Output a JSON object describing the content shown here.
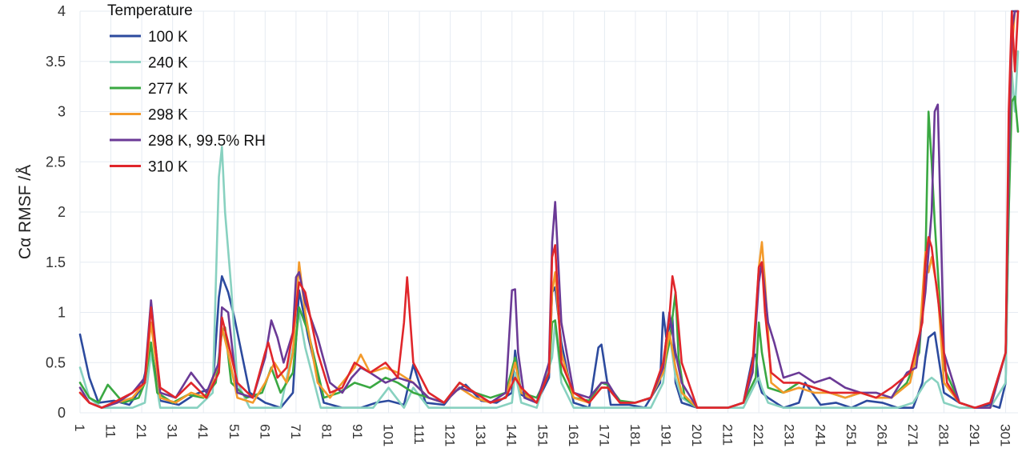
{
  "chart_data": {
    "type": "line",
    "title": "",
    "xlabel": "",
    "ylabel": "Cα RMSF /Å",
    "xlim": [
      1,
      305
    ],
    "ylim": [
      0,
      4
    ],
    "grid": true,
    "legend": {
      "title": "Temperature",
      "placement": "top-left"
    },
    "y_ticks": [
      "0",
      "0.5",
      "1",
      "1.5",
      "2",
      "2.5",
      "3",
      "3.5",
      "4"
    ],
    "x_ticks": [
      "1",
      "11",
      "21",
      "31",
      "41",
      "51",
      "61",
      "71",
      "81",
      "91",
      "101",
      "111",
      "121",
      "131",
      "141",
      "151",
      "161",
      "171",
      "181",
      "191",
      "201",
      "211",
      "221",
      "231",
      "241",
      "251",
      "261",
      "271",
      "281",
      "291",
      "301"
    ],
    "series": [
      {
        "name": "100 K",
        "color": "#2c4a9e",
        "x": [
          1,
          4,
          7,
          12,
          17,
          21,
          24,
          27,
          33,
          38,
          44,
          46,
          47,
          49,
          51,
          56,
          61,
          66,
          70,
          72,
          75,
          80,
          86,
          92,
          97,
          101,
          106,
          109,
          113,
          119,
          122,
          126,
          131,
          136,
          141,
          142,
          144,
          149,
          153,
          154,
          155,
          157,
          161,
          166,
          169,
          170,
          173,
          179,
          184,
          189,
          190,
          191,
          193,
          194,
          196,
          201,
          206,
          211,
          216,
          219,
          220,
          221,
          222,
          224,
          229,
          234,
          236,
          241,
          246,
          251,
          256,
          261,
          266,
          271,
          274,
          275,
          276,
          278,
          281,
          286,
          291,
          296,
          299,
          301,
          303,
          305
        ],
        "y": [
          0.78,
          0.35,
          0.1,
          0.12,
          0.08,
          0.25,
          0.65,
          0.12,
          0.08,
          0.18,
          0.25,
          1.15,
          1.36,
          1.2,
          0.95,
          0.2,
          0.1,
          0.05,
          0.2,
          1.22,
          0.75,
          0.1,
          0.05,
          0.05,
          0.1,
          0.12,
          0.08,
          0.48,
          0.1,
          0.08,
          0.2,
          0.28,
          0.12,
          0.1,
          0.2,
          0.62,
          0.18,
          0.1,
          0.35,
          1.2,
          1.25,
          0.7,
          0.1,
          0.05,
          0.65,
          0.68,
          0.08,
          0.08,
          0.05,
          0.3,
          1.0,
          0.75,
          0.95,
          0.3,
          0.1,
          0.05,
          0.05,
          0.05,
          0.1,
          0.55,
          0.58,
          0.3,
          0.2,
          0.15,
          0.05,
          0.1,
          0.3,
          0.08,
          0.1,
          0.05,
          0.12,
          0.1,
          0.05,
          0.05,
          0.3,
          0.55,
          0.75,
          0.8,
          0.2,
          0.1,
          0.05,
          0.08,
          0.05,
          0.3,
          4.0,
          4.0
        ]
      },
      {
        "name": "240 K",
        "color": "#88d1c0",
        "x": [
          1,
          4,
          8,
          13,
          18,
          22,
          24,
          27,
          33,
          39,
          44,
          46,
          47,
          48,
          50,
          52,
          56,
          61,
          66,
          71,
          72,
          74,
          79,
          85,
          91,
          96,
          101,
          106,
          109,
          114,
          121,
          126,
          131,
          136,
          141,
          142,
          144,
          149,
          154,
          155,
          157,
          161,
          166,
          171,
          176,
          181,
          186,
          190,
          192,
          194,
          196,
          201,
          206,
          211,
          216,
          220,
          221,
          222,
          224,
          229,
          236,
          241,
          246,
          251,
          256,
          261,
          266,
          271,
          275,
          277,
          279,
          281,
          286,
          291,
          296,
          301,
          302,
          303,
          304,
          305
        ],
        "y": [
          0.45,
          0.15,
          0.05,
          0.05,
          0.05,
          0.1,
          0.6,
          0.05,
          0.05,
          0.05,
          0.2,
          2.35,
          2.65,
          2.0,
          1.25,
          0.3,
          0.05,
          0.05,
          0.05,
          0.8,
          1.0,
          0.65,
          0.05,
          0.05,
          0.05,
          0.05,
          0.25,
          0.05,
          0.25,
          0.05,
          0.05,
          0.05,
          0.05,
          0.05,
          0.1,
          0.4,
          0.1,
          0.05,
          0.55,
          0.9,
          0.3,
          0.05,
          0.05,
          0.05,
          0.05,
          0.05,
          0.05,
          0.3,
          0.8,
          0.35,
          0.15,
          0.05,
          0.05,
          0.05,
          0.05,
          0.3,
          0.35,
          0.25,
          0.1,
          0.05,
          0.05,
          0.05,
          0.05,
          0.05,
          0.05,
          0.05,
          0.05,
          0.1,
          0.3,
          0.35,
          0.3,
          0.1,
          0.05,
          0.05,
          0.05,
          0.3,
          2.0,
          3.4,
          3.0,
          3.6
        ]
      },
      {
        "name": "277 K",
        "color": "#3aa842",
        "x": [
          1,
          4,
          7,
          10,
          15,
          20,
          22,
          24,
          26,
          31,
          36,
          41,
          45,
          47,
          48,
          50,
          55,
          60,
          63,
          66,
          70,
          72,
          75,
          80,
          85,
          90,
          95,
          100,
          104,
          109,
          114,
          119,
          124,
          129,
          134,
          139,
          142,
          144,
          149,
          153,
          154,
          155,
          157,
          161,
          166,
          170,
          172,
          176,
          181,
          186,
          190,
          192,
          194,
          195,
          197,
          201,
          206,
          211,
          216,
          220,
          221,
          222,
          224,
          229,
          234,
          239,
          244,
          249,
          254,
          259,
          264,
          269,
          273,
          275,
          276,
          277,
          278,
          281,
          286,
          291,
          296,
          301,
          302,
          303,
          304,
          305
        ],
        "y": [
          0.3,
          0.15,
          0.1,
          0.28,
          0.1,
          0.15,
          0.3,
          0.7,
          0.2,
          0.1,
          0.18,
          0.15,
          0.3,
          0.8,
          0.85,
          0.3,
          0.15,
          0.2,
          0.45,
          0.2,
          0.4,
          1.05,
          0.8,
          0.15,
          0.2,
          0.3,
          0.25,
          0.35,
          0.3,
          0.2,
          0.15,
          0.1,
          0.3,
          0.2,
          0.15,
          0.2,
          0.55,
          0.2,
          0.15,
          0.4,
          0.9,
          0.92,
          0.4,
          0.15,
          0.12,
          0.3,
          0.28,
          0.12,
          0.1,
          0.15,
          0.4,
          0.7,
          1.2,
          0.55,
          0.15,
          0.05,
          0.05,
          0.05,
          0.1,
          0.35,
          0.9,
          0.6,
          0.25,
          0.2,
          0.3,
          0.25,
          0.2,
          0.15,
          0.2,
          0.15,
          0.15,
          0.3,
          0.6,
          1.5,
          3.0,
          2.5,
          1.9,
          0.45,
          0.1,
          0.05,
          0.05,
          0.6,
          2.0,
          3.1,
          3.15,
          2.8
        ]
      },
      {
        "name": "298 K",
        "color": "#f39a2b",
        "x": [
          1,
          4,
          8,
          13,
          18,
          22,
          24,
          27,
          32,
          37,
          42,
          46,
          47,
          49,
          52,
          57,
          61,
          64,
          68,
          70,
          72,
          74,
          78,
          82,
          86,
          90,
          92,
          95,
          100,
          104,
          109,
          114,
          119,
          124,
          129,
          134,
          139,
          142,
          144,
          149,
          153,
          154,
          155,
          157,
          161,
          166,
          170,
          172,
          176,
          181,
          186,
          190,
          192,
          194,
          196,
          201,
          206,
          211,
          216,
          219,
          221,
          222,
          223,
          225,
          229,
          234,
          239,
          244,
          249,
          254,
          259,
          264,
          270,
          273,
          275,
          276,
          277,
          279,
          281,
          286,
          291,
          296,
          301,
          302,
          303,
          304,
          305
        ],
        "y": [
          0.2,
          0.1,
          0.05,
          0.1,
          0.15,
          0.3,
          0.9,
          0.15,
          0.1,
          0.2,
          0.15,
          0.5,
          0.85,
          0.6,
          0.15,
          0.1,
          0.3,
          0.5,
          0.3,
          0.6,
          1.5,
          1.0,
          0.3,
          0.15,
          0.3,
          0.45,
          0.58,
          0.4,
          0.45,
          0.4,
          0.3,
          0.15,
          0.1,
          0.25,
          0.15,
          0.1,
          0.15,
          0.5,
          0.2,
          0.1,
          0.4,
          1.2,
          1.4,
          0.6,
          0.15,
          0.1,
          0.25,
          0.25,
          0.1,
          0.1,
          0.15,
          0.4,
          0.8,
          0.45,
          0.2,
          0.05,
          0.05,
          0.05,
          0.1,
          0.4,
          1.45,
          1.7,
          1.3,
          0.3,
          0.2,
          0.25,
          0.2,
          0.2,
          0.15,
          0.2,
          0.15,
          0.15,
          0.3,
          0.7,
          1.6,
          1.4,
          1.55,
          1.2,
          0.3,
          0.1,
          0.05,
          0.05,
          0.6,
          2.5,
          3.6,
          4.0,
          4.0
        ]
      },
      {
        "name": "298 K, 99.5% RH",
        "color": "#6b3a96",
        "x": [
          1,
          4,
          8,
          13,
          18,
          22,
          24,
          27,
          32,
          37,
          42,
          46,
          47,
          49,
          52,
          57,
          61,
          63,
          65,
          67,
          70,
          71,
          72,
          74,
          78,
          82,
          86,
          89,
          92,
          95,
          100,
          104,
          109,
          114,
          119,
          124,
          129,
          134,
          139,
          141,
          142,
          143,
          145,
          149,
          153,
          154,
          155,
          157,
          161,
          166,
          170,
          172,
          176,
          181,
          186,
          190,
          192,
          194,
          196,
          201,
          206,
          211,
          216,
          219,
          221,
          222,
          224,
          226,
          229,
          234,
          239,
          244,
          249,
          254,
          259,
          264,
          269,
          272,
          275,
          277,
          278,
          279,
          281,
          286,
          291,
          296,
          301,
          302,
          303,
          304,
          305
        ],
        "y": [
          0.25,
          0.1,
          0.05,
          0.1,
          0.2,
          0.35,
          1.12,
          0.2,
          0.15,
          0.4,
          0.2,
          0.5,
          1.05,
          1.0,
          0.2,
          0.15,
          0.55,
          0.92,
          0.75,
          0.5,
          0.8,
          1.35,
          1.4,
          1.1,
          0.75,
          0.3,
          0.2,
          0.35,
          0.45,
          0.4,
          0.3,
          0.35,
          0.3,
          0.15,
          0.1,
          0.25,
          0.2,
          0.1,
          0.2,
          1.22,
          1.23,
          0.6,
          0.15,
          0.1,
          0.5,
          1.7,
          2.1,
          0.9,
          0.2,
          0.15,
          0.3,
          0.3,
          0.1,
          0.1,
          0.15,
          0.45,
          1.0,
          0.6,
          0.3,
          0.05,
          0.05,
          0.05,
          0.1,
          0.4,
          1.3,
          1.5,
          0.9,
          0.7,
          0.35,
          0.4,
          0.3,
          0.35,
          0.25,
          0.2,
          0.2,
          0.15,
          0.4,
          0.45,
          1.2,
          2.0,
          3.0,
          3.07,
          0.6,
          0.1,
          0.05,
          0.05,
          0.6,
          2.5,
          3.8,
          4.0,
          4.0
        ]
      },
      {
        "name": "310 K",
        "color": "#e0262b",
        "x": [
          1,
          4,
          8,
          13,
          18,
          22,
          24,
          27,
          32,
          37,
          42,
          46,
          47,
          49,
          52,
          57,
          61,
          62,
          65,
          68,
          70,
          72,
          74,
          78,
          82,
          86,
          90,
          95,
          100,
          104,
          106,
          107,
          109,
          114,
          119,
          124,
          129,
          134,
          139,
          142,
          144,
          149,
          153,
          154,
          155,
          157,
          161,
          166,
          170,
          172,
          176,
          181,
          186,
          190,
          192,
          193,
          194,
          196,
          201,
          206,
          211,
          216,
          219,
          221,
          222,
          223,
          225,
          229,
          234,
          239,
          244,
          249,
          254,
          259,
          264,
          270,
          274,
          275,
          276,
          277,
          278,
          280,
          282,
          286,
          291,
          296,
          301,
          302,
          303,
          304,
          305
        ],
        "y": [
          0.2,
          0.1,
          0.05,
          0.12,
          0.2,
          0.3,
          1.05,
          0.25,
          0.15,
          0.3,
          0.15,
          0.4,
          0.95,
          0.7,
          0.3,
          0.15,
          0.6,
          0.7,
          0.35,
          0.45,
          0.8,
          1.3,
          1.2,
          0.6,
          0.2,
          0.25,
          0.5,
          0.4,
          0.5,
          0.35,
          0.9,
          1.35,
          0.5,
          0.2,
          0.1,
          0.3,
          0.2,
          0.1,
          0.15,
          0.35,
          0.25,
          0.1,
          0.4,
          1.55,
          1.67,
          0.5,
          0.2,
          0.1,
          0.25,
          0.25,
          0.1,
          0.1,
          0.15,
          0.5,
          0.95,
          1.36,
          1.2,
          0.5,
          0.05,
          0.05,
          0.05,
          0.1,
          0.5,
          1.45,
          1.5,
          1.0,
          0.4,
          0.3,
          0.3,
          0.25,
          0.2,
          0.2,
          0.2,
          0.15,
          0.25,
          0.4,
          0.9,
          1.5,
          1.75,
          1.65,
          1.4,
          0.9,
          0.3,
          0.1,
          0.05,
          0.1,
          0.6,
          3.0,
          4.0,
          3.4,
          4.0
        ]
      }
    ]
  }
}
